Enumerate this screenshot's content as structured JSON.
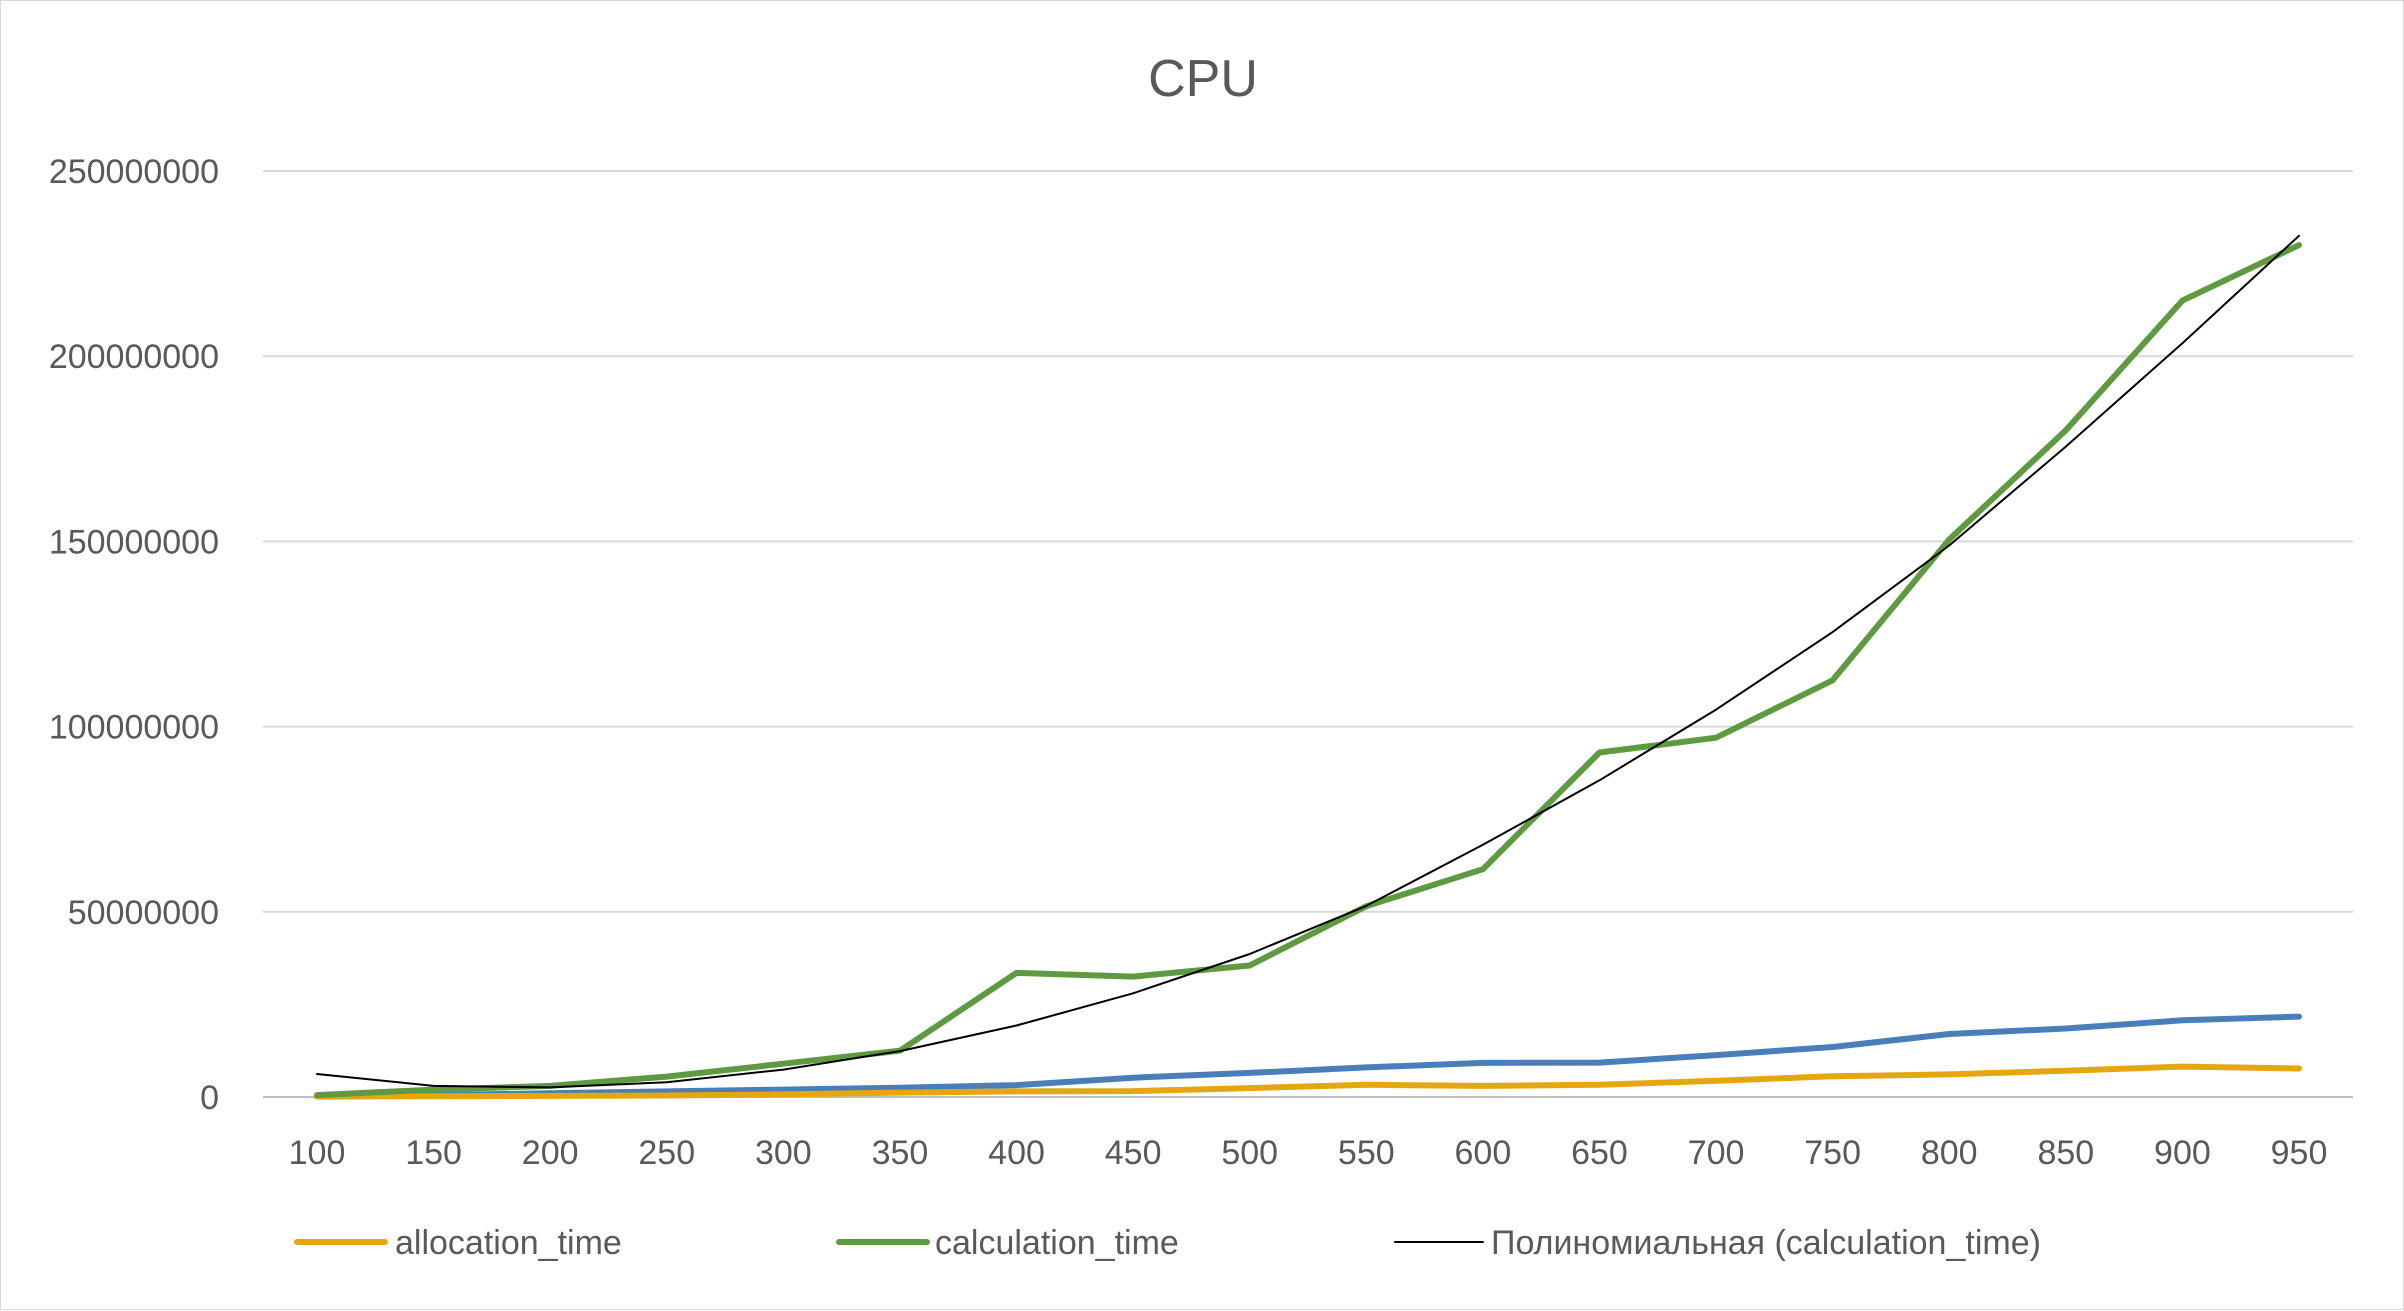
{
  "chart_data": {
    "type": "line",
    "title": "CPU",
    "xlabel": "",
    "ylabel": "",
    "x": [
      100,
      150,
      200,
      250,
      300,
      350,
      400,
      450,
      500,
      550,
      600,
      650,
      700,
      750,
      800,
      850,
      900,
      950
    ],
    "x_tick_labels": [
      "100",
      "150",
      "200",
      "250",
      "300",
      "350",
      "400",
      "450",
      "500",
      "550",
      "600",
      "650",
      "700",
      "750",
      "800",
      "850",
      "900",
      "950"
    ],
    "ylim": [
      0,
      250000000
    ],
    "y_ticks": [
      0,
      50000000,
      100000000,
      150000000,
      200000000,
      250000000
    ],
    "y_tick_labels": [
      "0",
      "50000000",
      "100000000",
      "150000000",
      "200000000",
      "250000000"
    ],
    "grid": true,
    "legend_position": "bottom",
    "series": [
      {
        "name": "",
        "color": "#4a7ebb",
        "values": [
          200000,
          500000,
          1000000,
          1500000,
          2000000,
          2500000,
          3200000,
          5200000,
          6500000,
          8000000,
          9200000,
          9300000,
          11300000,
          13500000,
          17000000,
          18500000,
          20700000,
          21700000
        ]
      },
      {
        "name": "allocation_time",
        "color": "#e5a710",
        "values": [
          100000,
          200000,
          300000,
          400000,
          700000,
          1200000,
          1500000,
          1600000,
          2400000,
          3300000,
          3000000,
          3300000,
          4400000,
          5600000,
          6100000,
          7100000,
          8200000,
          7700000
        ]
      },
      {
        "name": "calculation_time",
        "color": "#5e9a3f",
        "values": [
          500000,
          2000000,
          3000000,
          5500000,
          9000000,
          12500000,
          33500000,
          32500000,
          35500000,
          51500000,
          61500000,
          93000000,
          97000000,
          112500000,
          150500000,
          180000000,
          215000000,
          230000000
        ]
      },
      {
        "name": "Полиномиальная (calculation_time)",
        "color": "#000000",
        "trendline_of": "calculation_time",
        "values": [
          6200000,
          3000000,
          2600000,
          4000000,
          7400000,
          12400000,
          19300000,
          28000000,
          38600000,
          51600000,
          68100000,
          85500000,
          104600000,
          125500000,
          148900000,
          175600000,
          203500000,
          232500000
        ]
      }
    ]
  }
}
